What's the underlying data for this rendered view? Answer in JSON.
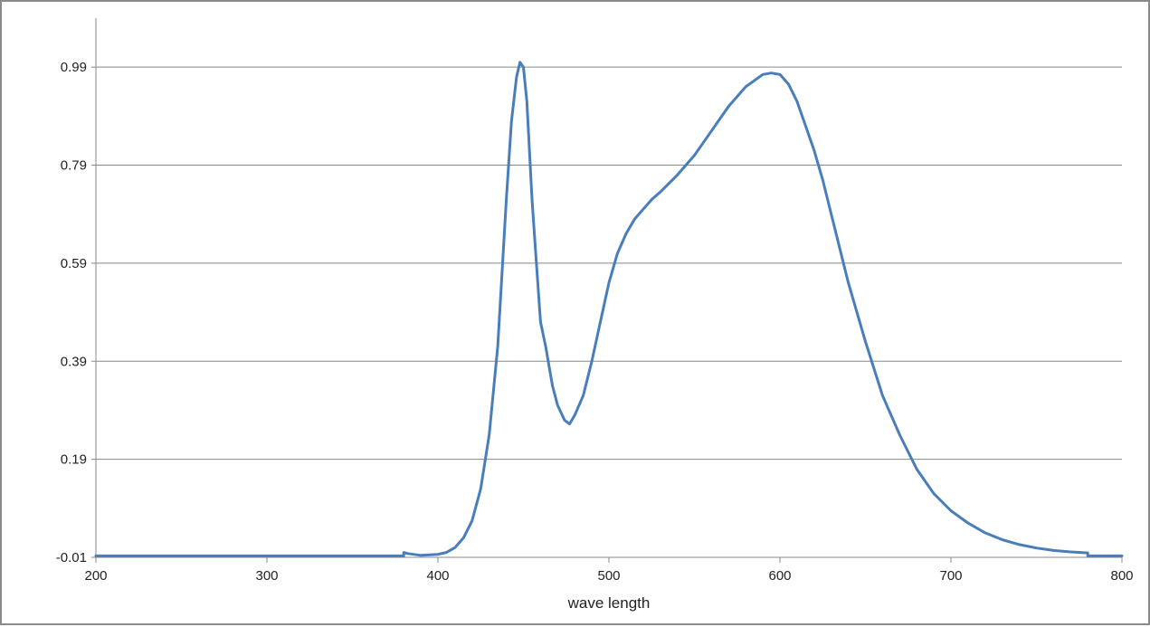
{
  "chart_data": {
    "type": "line",
    "title": "",
    "xlabel": "wave length",
    "ylabel": "",
    "xlim": [
      200,
      800
    ],
    "ylim": [
      -0.01,
      1.09
    ],
    "x_ticks": [
      200,
      300,
      400,
      500,
      600,
      700,
      800
    ],
    "x_tick_labels": [
      "200",
      "300",
      "400",
      "500",
      "600",
      "700",
      "800"
    ],
    "y_ticks": [
      -0.01,
      0.19,
      0.39,
      0.59,
      0.79,
      0.99
    ],
    "y_tick_labels": [
      "-0.01",
      "0.19",
      "0.39",
      "0.59",
      "0.79",
      "0.99"
    ],
    "grid": {
      "horizontal": true,
      "vertical": false
    },
    "legend": "none",
    "colors": {
      "line": "#4a7ebb",
      "grid": "#888888",
      "axis": "#888888",
      "frame": "#8a8a8a"
    },
    "series": [
      {
        "x": [
          200,
          380,
          380,
          382,
          390,
          400,
          405,
          410,
          415,
          420,
          425,
          430,
          435,
          440,
          443,
          446,
          448,
          450,
          452,
          455,
          458,
          460,
          463,
          467,
          470,
          474,
          477,
          480,
          485,
          490,
          495,
          500,
          505,
          510,
          515,
          520,
          525,
          530,
          540,
          550,
          560,
          570,
          580,
          590,
          595,
          600,
          605,
          610,
          615,
          620,
          625,
          630,
          640,
          650,
          660,
          670,
          680,
          690,
          700,
          710,
          720,
          730,
          740,
          750,
          760,
          770,
          780,
          780,
          790,
          800
        ],
        "y": [
          -0.007,
          -0.007,
          0.0,
          -0.002,
          -0.006,
          -0.004,
          0.0,
          0.01,
          0.03,
          0.065,
          0.13,
          0.24,
          0.42,
          0.72,
          0.88,
          0.97,
          1.0,
          0.99,
          0.92,
          0.72,
          0.57,
          0.47,
          0.42,
          0.34,
          0.3,
          0.27,
          0.262,
          0.28,
          0.32,
          0.39,
          0.47,
          0.55,
          0.61,
          0.65,
          0.68,
          0.7,
          0.72,
          0.735,
          0.77,
          0.81,
          0.86,
          0.91,
          0.95,
          0.975,
          0.978,
          0.975,
          0.955,
          0.92,
          0.87,
          0.82,
          0.76,
          0.69,
          0.55,
          0.43,
          0.32,
          0.24,
          0.17,
          0.12,
          0.085,
          0.06,
          0.04,
          0.026,
          0.016,
          0.009,
          0.004,
          0.001,
          -0.001,
          -0.007,
          -0.007,
          -0.007
        ]
      }
    ]
  }
}
